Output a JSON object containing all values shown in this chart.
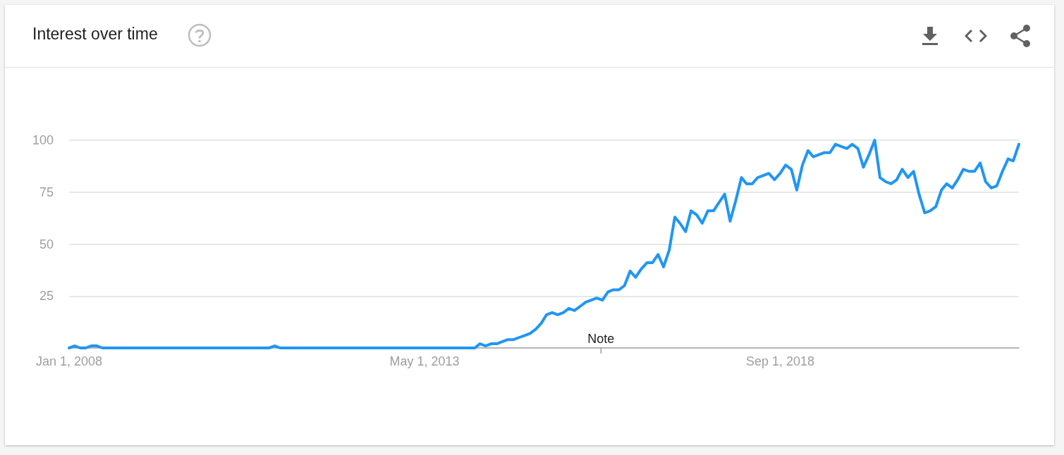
{
  "chart_data": {
    "type": "line",
    "title": "Interest over time",
    "x": [
      "2008-01",
      "2008-02",
      "2008-03",
      "2008-04",
      "2008-05",
      "2008-06",
      "2008-07",
      "2011-01",
      "2011-02",
      "2011-03",
      "2014-02",
      "2014-03",
      "2014-04",
      "2014-05",
      "2014-06",
      "2014-07",
      "2014-08",
      "2014-09",
      "2014-10",
      "2014-11",
      "2014-12",
      "2015-01",
      "2015-02",
      "2015-03",
      "2015-04",
      "2015-05",
      "2015-06",
      "2015-07",
      "2015-08",
      "2015-09",
      "2015-10",
      "2015-11",
      "2015-12",
      "2016-01",
      "2016-02",
      "2016-03",
      "2016-04",
      "2016-05",
      "2016-06",
      "2016-07",
      "2016-08",
      "2016-09",
      "2016-10",
      "2016-11",
      "2016-12",
      "2017-01",
      "2017-02",
      "2017-03",
      "2017-04",
      "2017-05",
      "2017-06",
      "2017-07",
      "2017-08",
      "2017-09",
      "2017-10",
      "2017-11",
      "2017-12",
      "2018-01",
      "2018-02",
      "2018-03",
      "2018-04",
      "2018-05",
      "2018-06",
      "2018-07",
      "2018-08",
      "2018-09",
      "2018-10",
      "2018-11",
      "2018-12",
      "2019-01",
      "2019-02",
      "2019-03",
      "2019-04",
      "2019-05",
      "2019-06",
      "2019-07",
      "2019-08",
      "2019-09",
      "2019-10",
      "2019-11",
      "2019-12",
      "2020-01",
      "2020-02",
      "2020-03",
      "2020-04",
      "2020-05",
      "2020-06",
      "2020-07",
      "2020-08",
      "2020-09",
      "2020-10",
      "2020-11",
      "2020-12",
      "2021-01",
      "2021-02",
      "2021-03",
      "2021-04",
      "2021-05",
      "2021-06",
      "2021-07",
      "2021-08",
      "2021-09",
      "2021-10",
      "2021-11",
      "2021-12",
      "2022-01",
      "2022-02",
      "2022-03",
      "2022-04"
    ],
    "series": [
      {
        "color": "#2196f3",
        "values": [
          0,
          1,
          0,
          0,
          1,
          1,
          0,
          0,
          1,
          0,
          0,
          2,
          1,
          2,
          2,
          3,
          4,
          4,
          5,
          6,
          7,
          9,
          12,
          16,
          17,
          16,
          17,
          19,
          18,
          20,
          22,
          23,
          24,
          23,
          27,
          28,
          28,
          30,
          37,
          34,
          38,
          41,
          41,
          45,
          39,
          47,
          63,
          60,
          56,
          66,
          64,
          60,
          66,
          66,
          70,
          74,
          61,
          71,
          82,
          79,
          79,
          82,
          83,
          84,
          81,
          84,
          88,
          86,
          76,
          88,
          95,
          92,
          93,
          94,
          94,
          98,
          97,
          96,
          98,
          96,
          87,
          93,
          100,
          82,
          80,
          79,
          81,
          86,
          82,
          85,
          74,
          65,
          66,
          68,
          76,
          79,
          77,
          81,
          86,
          85,
          85,
          89,
          80,
          77,
          78,
          85,
          91,
          90,
          98
        ]
      }
    ],
    "xlim": [
      "2008-01-01",
      "2022-04-01"
    ],
    "xticks": [
      {
        "value": "2008-01-01",
        "label": "Jan 1, 2008"
      },
      {
        "value": "2013-05-01",
        "label": "May 1, 2013"
      },
      {
        "value": "2018-09-01",
        "label": "Sep 1, 2018"
      }
    ],
    "ylim": [
      0,
      100
    ],
    "yticks": [
      25,
      50,
      75,
      100
    ],
    "grid": "y",
    "marker": "none",
    "line_style": "solid",
    "annotations": [
      "Note"
    ]
  }
}
